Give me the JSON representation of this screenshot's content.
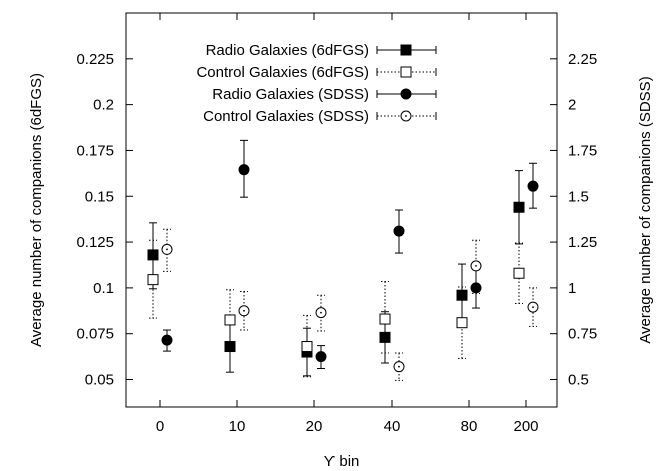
{
  "chart_data": {
    "type": "scatter",
    "title": "",
    "xlabel": "ϒ bin",
    "ylabel_left": "Average number of companions (6dFGS)",
    "ylabel_right": "Average number of companions (SDSS)",
    "categories": [
      "0",
      "10",
      "20",
      "40",
      "80",
      "200"
    ],
    "y_left_ticks": [
      "0.05",
      "0.075",
      "0.1",
      "0.125",
      "0.15",
      "0.175",
      "0.2",
      "0.225"
    ],
    "y_right_ticks": [
      "0.5",
      "0.75",
      "1",
      "1.25",
      "1.5",
      "1.75",
      "2",
      "2.25"
    ],
    "ylim_left": [
      0.035,
      0.25
    ],
    "ylim_right": [
      0.35,
      2.5
    ],
    "legend_position": "top-left",
    "grid": false,
    "series": [
      {
        "name": "Radio Galaxies (6dFGS)",
        "axis": "left",
        "marker": "filled-square",
        "line": "solid",
        "values": [
          0.118,
          0.068,
          0.065,
          0.073,
          0.096,
          0.144
        ],
        "err_low": [
          0.0995,
          0.054,
          0.052,
          0.059,
          0.079,
          0.124
        ],
        "err_high": [
          0.1355,
          0.082,
          0.078,
          0.087,
          0.113,
          0.164
        ]
      },
      {
        "name": "Control Galaxies (6dFGS)",
        "axis": "left",
        "marker": "open-square",
        "line": "dotted",
        "values": [
          0.1045,
          0.0825,
          0.068,
          0.083,
          0.081,
          0.108
        ],
        "err_low": [
          0.0835,
          0.0665,
          0.0515,
          0.0645,
          0.0615,
          0.0915
        ],
        "err_high": [
          0.126,
          0.099,
          0.085,
          0.1035,
          0.1005,
          0.1245
        ]
      },
      {
        "name": "Radio Galaxies (SDSS)",
        "axis": "right",
        "marker": "filled-circle",
        "line": "solid",
        "values": [
          0.715,
          1.645,
          0.625,
          1.31,
          1.0,
          1.555
        ],
        "err_low": [
          0.655,
          1.495,
          0.56,
          1.19,
          0.89,
          1.435
        ],
        "err_high": [
          0.77,
          1.805,
          0.685,
          1.425,
          1.1,
          1.68
        ]
      },
      {
        "name": "Control Galaxies (SDSS)",
        "axis": "right",
        "marker": "open-circle",
        "line": "dotted",
        "values": [
          1.21,
          0.875,
          0.865,
          0.57,
          1.12,
          0.895
        ],
        "err_low": [
          1.09,
          0.77,
          0.765,
          0.495,
          0.97,
          0.79
        ],
        "err_high": [
          1.32,
          0.98,
          0.96,
          0.645,
          1.26,
          1.0
        ]
      }
    ]
  }
}
